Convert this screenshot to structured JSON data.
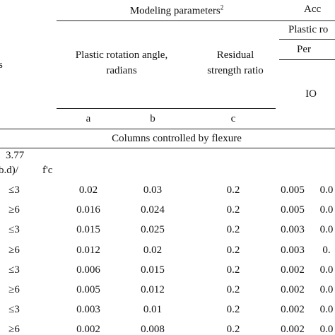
{
  "header": {
    "left_cropped": "s",
    "modeling_parameters": "Modeling parameters",
    "modeling_parameters_sup": "2",
    "acceptance_cropped": "Acc",
    "plastic_rotation_cropped": "Plastic ro",
    "performance_cropped": "Per",
    "plastic_rotation_angle": [
      "Plastic rotation angle,",
      "radians"
    ],
    "residual_strength": [
      "Residual",
      "strength ratio"
    ],
    "io": "IO",
    "subcolumns": [
      "a",
      "b",
      "c"
    ]
  },
  "section": "Columns controlled by flexure",
  "condition": [
    "3.77",
    "b.d)/",
    "f'c"
  ],
  "rows": [
    [
      "≤3",
      "0.02",
      "0.03",
      "0.2",
      "0.005",
      "0.0"
    ],
    [
      "≥6",
      "0.016",
      "0.024",
      "0.2",
      "0.005",
      "0.0"
    ],
    [
      "≤3",
      "0.015",
      "0.025",
      "0.2",
      "0.003",
      "0.0"
    ],
    [
      "≥6",
      "0.012",
      "0.02",
      "0.2",
      "0.003",
      "0."
    ],
    [
      "≤3",
      "0.006",
      "0.015",
      "0.2",
      "0.002",
      "0.0"
    ],
    [
      "≥6",
      "0.005",
      "0.012",
      "0.2",
      "0.002",
      "0.0"
    ],
    [
      "≤3",
      "0.003",
      "0.01",
      "0.2",
      "0.002",
      "0.0"
    ],
    [
      "≥6",
      "0.002",
      "0.008",
      "0.2",
      "0.002",
      "0.0"
    ]
  ]
}
